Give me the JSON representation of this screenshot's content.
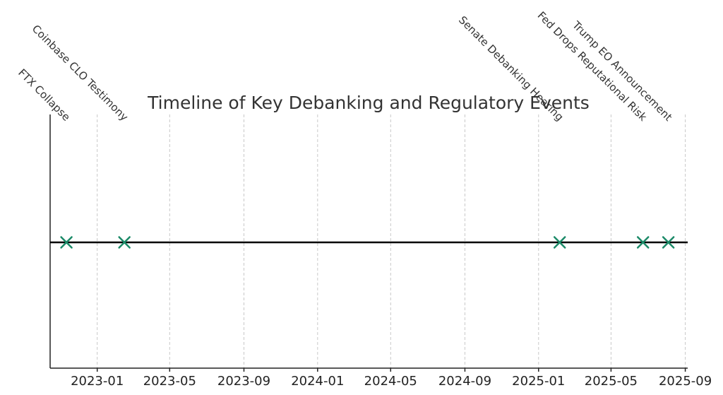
{
  "chart_data": {
    "type": "scatter",
    "title": "Timeline of Key Debanking and Regulatory Events",
    "xlabel": "",
    "ylabel": "",
    "x_axis": {
      "type": "date",
      "range": [
        "2022-10-15",
        "2025-09-05"
      ],
      "ticks": [
        "2023-01",
        "2023-05",
        "2023-09",
        "2024-01",
        "2024-05",
        "2024-09",
        "2025-01",
        "2025-05",
        "2025-09"
      ]
    },
    "grid": {
      "x": true,
      "y": false
    },
    "marker": {
      "shape": "x",
      "color": "#1b8a68"
    },
    "events": [
      {
        "date": "2022-11-11",
        "label": "FTX Collapse"
      },
      {
        "date": "2023-02-15",
        "label": "Coinbase CLO Testimony"
      },
      {
        "date": "2025-02-05",
        "label": "Senate Debanking Hearing"
      },
      {
        "date": "2025-06-23",
        "label": "Fed Drops Reputational Risk"
      },
      {
        "date": "2025-08-04",
        "label": "Trump EO Announcement"
      }
    ]
  }
}
